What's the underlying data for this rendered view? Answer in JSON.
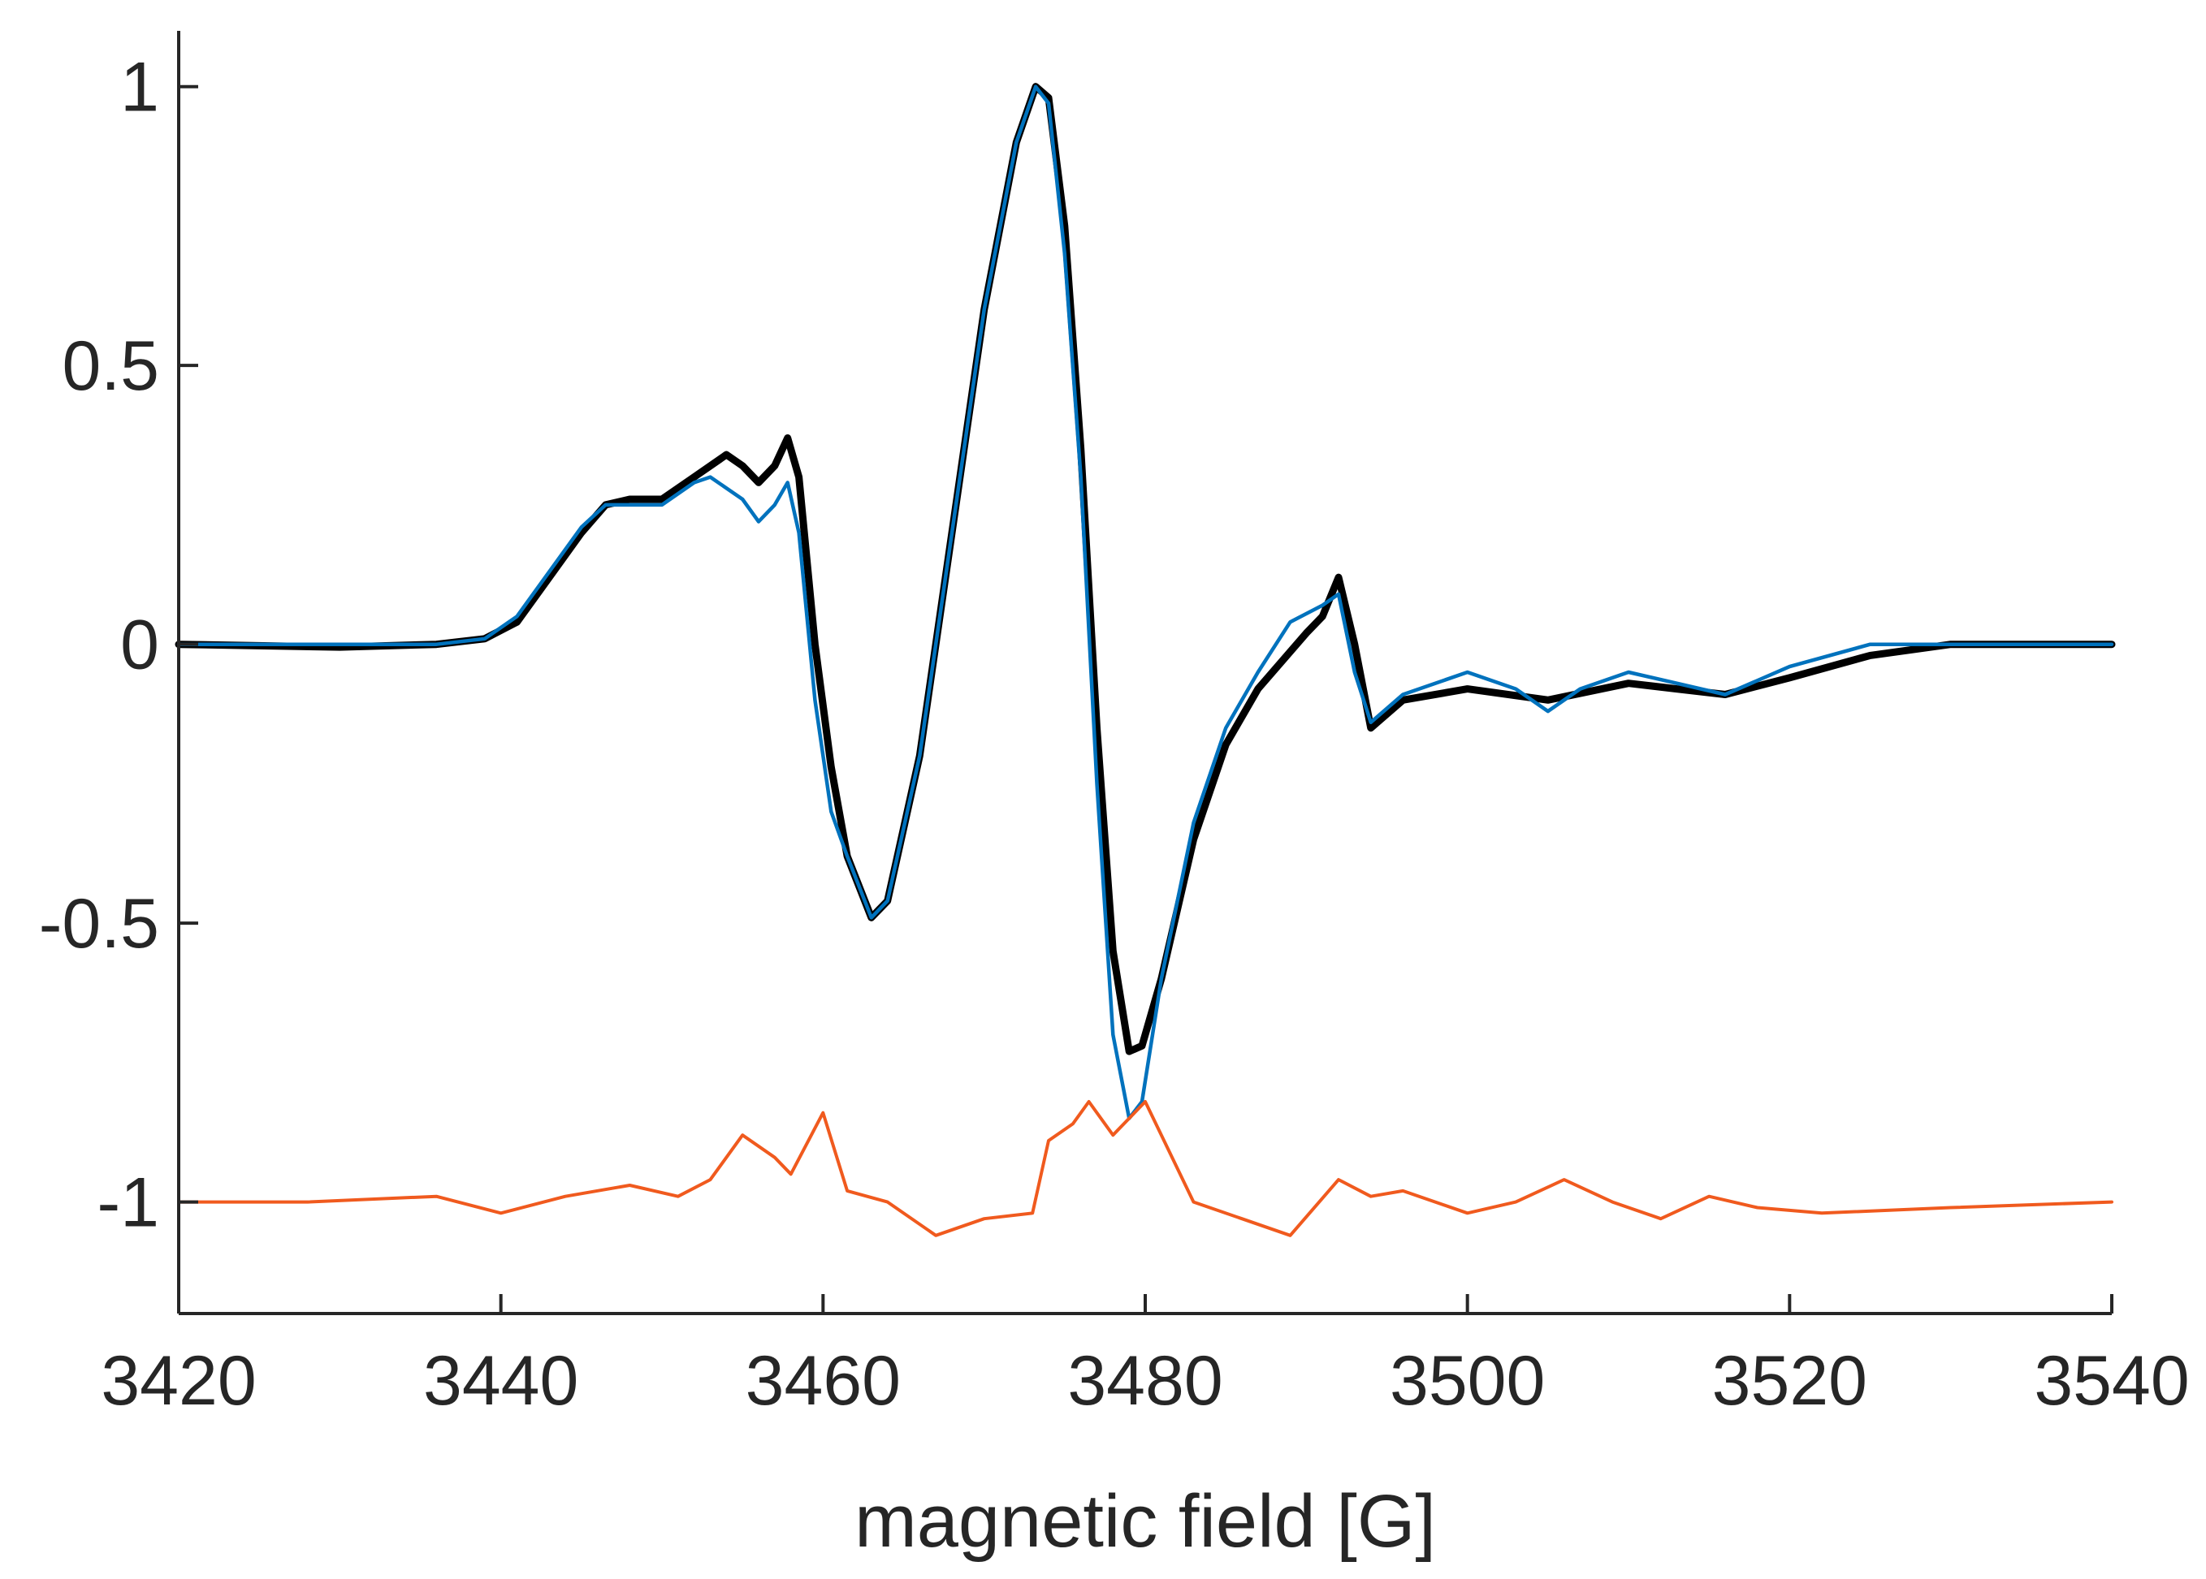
{
  "chart_data": {
    "type": "line",
    "title": "",
    "xlabel": "magnetic field [G]",
    "ylabel": "",
    "xlim": [
      3420,
      3540
    ],
    "ylim": [
      -1.2,
      1.1
    ],
    "xticks": [
      3420,
      3440,
      3460,
      3480,
      3500,
      3520,
      3540
    ],
    "xtick_labels": [
      "3420",
      "3440",
      "3460",
      "3480",
      "3500",
      "3520",
      "3540"
    ],
    "yticks": [
      -1,
      -0.5,
      0,
      0.5,
      1
    ],
    "ytick_labels": [
      "-1",
      "-0.5",
      "0",
      "0.5",
      "1"
    ],
    "grid": false,
    "legend": "none",
    "series": [
      {
        "color": "#000000",
        "points": [
          [
            3420,
            0.0
          ],
          [
            3430,
            -0.005
          ],
          [
            3436,
            0.0
          ],
          [
            3439,
            0.01
          ],
          [
            3441,
            0.04
          ],
          [
            3443,
            0.12
          ],
          [
            3445,
            0.2
          ],
          [
            3446.5,
            0.25
          ],
          [
            3448,
            0.26
          ],
          [
            3450,
            0.26
          ],
          [
            3452,
            0.3
          ],
          [
            3454,
            0.34
          ],
          [
            3455,
            0.32
          ],
          [
            3456,
            0.29
          ],
          [
            3457,
            0.32
          ],
          [
            3457.8,
            0.37
          ],
          [
            3458.5,
            0.3
          ],
          [
            3459.5,
            0.0
          ],
          [
            3460.5,
            -0.22
          ],
          [
            3461.5,
            -0.38
          ],
          [
            3463,
            -0.49
          ],
          [
            3464,
            -0.46
          ],
          [
            3466,
            -0.2
          ],
          [
            3468,
            0.2
          ],
          [
            3470,
            0.6
          ],
          [
            3472,
            0.9
          ],
          [
            3473.2,
            1.0
          ],
          [
            3474,
            0.98
          ],
          [
            3475,
            0.75
          ],
          [
            3476,
            0.35
          ],
          [
            3477,
            -0.15
          ],
          [
            3478,
            -0.55
          ],
          [
            3479,
            -0.73
          ],
          [
            3479.8,
            -0.72
          ],
          [
            3481,
            -0.6
          ],
          [
            3483,
            -0.35
          ],
          [
            3485,
            -0.18
          ],
          [
            3487,
            -0.08
          ],
          [
            3490,
            0.02
          ],
          [
            3491,
            0.05
          ],
          [
            3492,
            0.12
          ],
          [
            3493,
            0.0
          ],
          [
            3494,
            -0.15
          ],
          [
            3496,
            -0.1
          ],
          [
            3500,
            -0.08
          ],
          [
            3505,
            -0.1
          ],
          [
            3510,
            -0.07
          ],
          [
            3513,
            -0.08
          ],
          [
            3516,
            -0.09
          ],
          [
            3520,
            -0.06
          ],
          [
            3525,
            -0.02
          ],
          [
            3530,
            0.0
          ],
          [
            3540,
            0.0
          ]
        ]
      },
      {
        "color": "#0072BD",
        "points": [
          [
            3420,
            0.0
          ],
          [
            3436,
            0.0
          ],
          [
            3439,
            0.01
          ],
          [
            3441,
            0.05
          ],
          [
            3443,
            0.13
          ],
          [
            3445,
            0.21
          ],
          [
            3446.5,
            0.25
          ],
          [
            3448,
            0.25
          ],
          [
            3450,
            0.25
          ],
          [
            3452,
            0.29
          ],
          [
            3453,
            0.3
          ],
          [
            3455,
            0.26
          ],
          [
            3456,
            0.22
          ],
          [
            3457,
            0.25
          ],
          [
            3457.8,
            0.29
          ],
          [
            3458.5,
            0.2
          ],
          [
            3459.5,
            -0.1
          ],
          [
            3460.5,
            -0.3
          ],
          [
            3461.5,
            -0.38
          ],
          [
            3463,
            -0.49
          ],
          [
            3464,
            -0.46
          ],
          [
            3466,
            -0.2
          ],
          [
            3468,
            0.2
          ],
          [
            3470,
            0.6
          ],
          [
            3472,
            0.9
          ],
          [
            3473.2,
            1.0
          ],
          [
            3474,
            0.97
          ],
          [
            3475,
            0.7
          ],
          [
            3476,
            0.3
          ],
          [
            3477,
            -0.25
          ],
          [
            3478,
            -0.7
          ],
          [
            3479,
            -0.85
          ],
          [
            3479.8,
            -0.82
          ],
          [
            3481,
            -0.6
          ],
          [
            3483,
            -0.32
          ],
          [
            3485,
            -0.15
          ],
          [
            3487,
            -0.05
          ],
          [
            3489,
            0.04
          ],
          [
            3491,
            0.07
          ],
          [
            3492,
            0.09
          ],
          [
            3493,
            -0.05
          ],
          [
            3494,
            -0.14
          ],
          [
            3496,
            -0.09
          ],
          [
            3500,
            -0.05
          ],
          [
            3503,
            -0.08
          ],
          [
            3505,
            -0.12
          ],
          [
            3507,
            -0.08
          ],
          [
            3510,
            -0.05
          ],
          [
            3513,
            -0.07
          ],
          [
            3516,
            -0.09
          ],
          [
            3520,
            -0.04
          ],
          [
            3525,
            0.0
          ],
          [
            3540,
            0.0
          ]
        ]
      },
      {
        "color": "#F05A1E",
        "points": [
          [
            3420,
            -1.0
          ],
          [
            3428,
            -1.0
          ],
          [
            3436,
            -0.99
          ],
          [
            3440,
            -1.02
          ],
          [
            3444,
            -0.99
          ],
          [
            3448,
            -0.97
          ],
          [
            3451,
            -0.99
          ],
          [
            3453,
            -0.96
          ],
          [
            3455,
            -0.88
          ],
          [
            3457,
            -0.92
          ],
          [
            3458,
            -0.95
          ],
          [
            3460,
            -0.84
          ],
          [
            3461.5,
            -0.98
          ],
          [
            3464,
            -1.0
          ],
          [
            3467,
            -1.06
          ],
          [
            3470,
            -1.03
          ],
          [
            3473,
            -1.02
          ],
          [
            3474,
            -0.89
          ],
          [
            3475.5,
            -0.86
          ],
          [
            3476.5,
            -0.82
          ],
          [
            3478,
            -0.88
          ],
          [
            3480,
            -0.82
          ],
          [
            3483,
            -1.0
          ],
          [
            3486,
            -1.03
          ],
          [
            3489,
            -1.06
          ],
          [
            3492,
            -0.96
          ],
          [
            3494,
            -0.99
          ],
          [
            3496,
            -0.98
          ],
          [
            3500,
            -1.02
          ],
          [
            3503,
            -1.0
          ],
          [
            3506,
            -0.96
          ],
          [
            3509,
            -1.0
          ],
          [
            3512,
            -1.03
          ],
          [
            3515,
            -0.99
          ],
          [
            3518,
            -1.01
          ],
          [
            3522,
            -1.02
          ],
          [
            3530,
            -1.01
          ],
          [
            3540,
            -1.0
          ]
        ]
      }
    ]
  }
}
